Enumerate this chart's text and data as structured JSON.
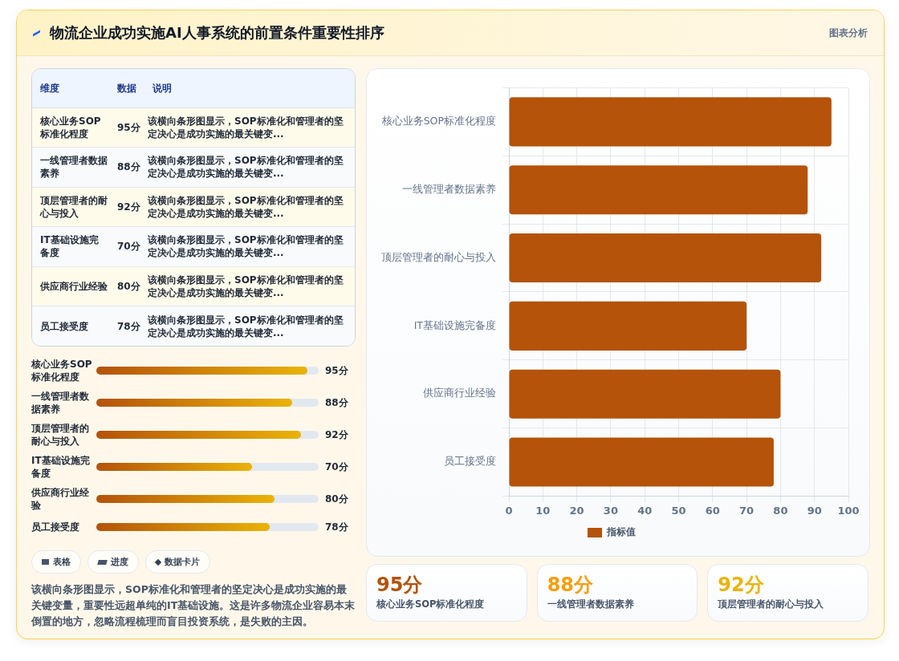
{
  "chart_data": [
    {
      "type": "other",
      "title": "物流企业成功实施AI人事系统的前置条件重要性排序",
      "annotations": [
        "图表分析"
      ]
    },
    {
      "type": "bar",
      "orientation": "horizontal",
      "categories": [
        "核心业务SOP标准化程度",
        "一线管理者数据素养",
        "顶层管理者的耐心与投入",
        "IT基础设施完备度",
        "供应商行业经验",
        "员工接受度"
      ],
      "series": [
        {
          "name": "指标值",
          "color": "#b45309",
          "values": [
            95,
            88,
            92,
            70,
            80,
            78
          ]
        }
      ],
      "xlim": [
        0,
        100
      ],
      "xticks": [
        0,
        10,
        20,
        30,
        40,
        50,
        60,
        70,
        80,
        90,
        100
      ],
      "grid": true,
      "legend": "bottom"
    },
    {
      "type": "other",
      "categories": [
        "核心业务SOP标准化程度",
        "一线管理者数据素养",
        "顶层管理者的耐心与投入",
        "IT基础设施完备度",
        "供应商行业经验",
        "员工接受度"
      ],
      "values": [
        95,
        88,
        92,
        70,
        80,
        78
      ],
      "value_labels": [
        "95分",
        "88分",
        "92分",
        "70分",
        "80分",
        "78分"
      ],
      "annotations": [
        "维度",
        "数据",
        "说明",
        "该横向条形图显示，SOP标准化和管理者的坚定决心是成功实施的最关键变...",
        "该横向条形图显示，SOP标准化和管理者的坚定决心是成功实施的最关键变...",
        "该横向条形图显示，SOP标准化和管理者的坚定决心是成功实施的最关键变...",
        "该横向条形图显示，SOP标准化和管理者的坚定决心是成功实施的最关键变...",
        "该横向条形图显示，SOP标准化和管理者的坚定决心是成功实施的最关键变...",
        "该横向条形图显示，SOP标准化和管理者的坚定决心是成功实施的最关键变...",
        "表格",
        "进度",
        "数据卡片",
        "该横向条形图显示，SOP标准化和管理者的坚定决心是成功实施的最关键变量，重要性远超单纯的IT基础设施。这是许多物流企业容易本末倒置的地方，忽略流程梳理而盲目投资系统，是失败的主因。"
      ]
    },
    {
      "type": "other",
      "categories": [
        "核心业务SOP标准化程度",
        "一线管理者数据素养",
        "顶层管理者的耐心与投入"
      ],
      "values": [
        95,
        88,
        92
      ],
      "value_labels": [
        "95分",
        "88分",
        "92分"
      ]
    }
  ]
}
